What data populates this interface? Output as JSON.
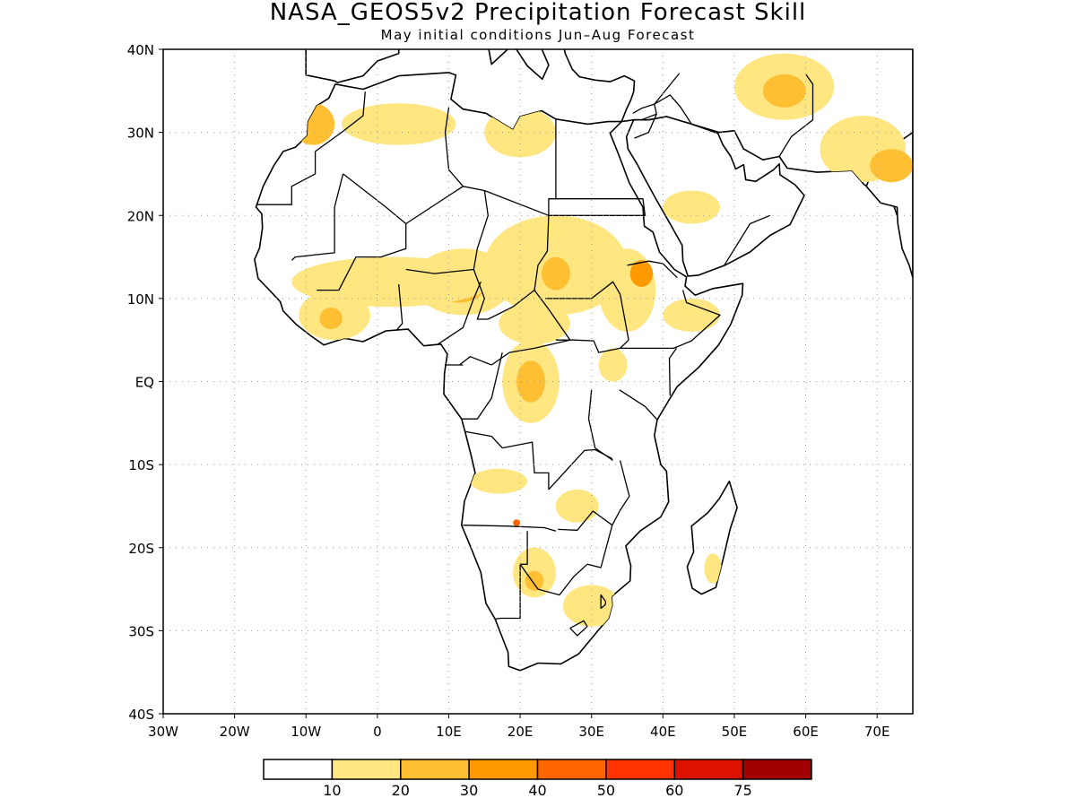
{
  "title": "NASA_GEOS5v2 Precipitation Forecast Skill",
  "subtitle": "May initial conditions  Jun–Aug Forecast",
  "map": {
    "lon_range": [
      -30,
      75
    ],
    "lat_range": [
      -40,
      40
    ],
    "lon_ticks": [
      {
        "value": -30,
        "label": "30W"
      },
      {
        "value": -20,
        "label": "20W"
      },
      {
        "value": -10,
        "label": "10W"
      },
      {
        "value": 0,
        "label": "0"
      },
      {
        "value": 10,
        "label": "10E"
      },
      {
        "value": 20,
        "label": "20E"
      },
      {
        "value": 30,
        "label": "30E"
      },
      {
        "value": 40,
        "label": "40E"
      },
      {
        "value": 50,
        "label": "50E"
      },
      {
        "value": 60,
        "label": "60E"
      },
      {
        "value": 70,
        "label": "70E"
      }
    ],
    "lat_ticks": [
      {
        "value": 40,
        "label": "40N"
      },
      {
        "value": 30,
        "label": "30N"
      },
      {
        "value": 20,
        "label": "20N"
      },
      {
        "value": 10,
        "label": "10N"
      },
      {
        "value": 0,
        "label": "EQ"
      },
      {
        "value": -10,
        "label": "10S"
      },
      {
        "value": -20,
        "label": "20S"
      },
      {
        "value": -30,
        "label": "30S"
      },
      {
        "value": -40,
        "label": "40S"
      }
    ]
  },
  "colorbar": {
    "colors": [
      "#ffffff",
      "#ffe680",
      "#ffbf33",
      "#ff9900",
      "#ff6600",
      "#ff3300",
      "#dd1100",
      "#a00000"
    ],
    "labels": [
      "10",
      "20",
      "30",
      "40",
      "50",
      "60",
      "75"
    ]
  },
  "skill_regions": [
    {
      "lon": 12,
      "lat": 12,
      "rx": 7,
      "ry": 4,
      "level": 1
    },
    {
      "lon": 11.5,
      "lat": 11.5,
      "rx": 3.5,
      "ry": 2,
      "level": 2
    },
    {
      "lon": 11,
      "lat": 11.2,
      "rx": 1.3,
      "ry": 1,
      "level": 3
    },
    {
      "lon": 2,
      "lat": 12,
      "rx": 14,
      "ry": 3,
      "level": 1
    },
    {
      "lon": -6,
      "lat": 8,
      "rx": 5,
      "ry": 3,
      "level": 1
    },
    {
      "lon": -6.5,
      "lat": 7.6,
      "rx": 1.6,
      "ry": 1.3,
      "level": 2
    },
    {
      "lon": 25,
      "lat": 14,
      "rx": 10,
      "ry": 6,
      "level": 1
    },
    {
      "lon": 25,
      "lat": 13,
      "rx": 2,
      "ry": 2,
      "level": 2
    },
    {
      "lon": 35,
      "lat": 11,
      "rx": 4,
      "ry": 5,
      "level": 1
    },
    {
      "lon": 37,
      "lat": 13,
      "rx": 1.6,
      "ry": 1.6,
      "level": 3
    },
    {
      "lon": 21.5,
      "lat": 0,
      "rx": 4,
      "ry": 5,
      "level": 1
    },
    {
      "lon": 21.5,
      "lat": 0,
      "rx": 2,
      "ry": 2.5,
      "level": 2
    },
    {
      "lon": 22,
      "lat": 7,
      "rx": 5,
      "ry": 2.5,
      "level": 1
    },
    {
      "lon": 20,
      "lat": 30,
      "rx": 5,
      "ry": 3,
      "level": 1
    },
    {
      "lon": 3,
      "lat": 31,
      "rx": 8,
      "ry": 2.5,
      "level": 1
    },
    {
      "lon": -9,
      "lat": 31,
      "rx": 3,
      "ry": 2.5,
      "level": 2
    },
    {
      "lon": 57,
      "lat": 35.5,
      "rx": 7,
      "ry": 4,
      "level": 1
    },
    {
      "lon": 57,
      "lat": 35,
      "rx": 3,
      "ry": 2,
      "level": 2
    },
    {
      "lon": 68,
      "lat": 28,
      "rx": 6,
      "ry": 4,
      "level": 1
    },
    {
      "lon": 72,
      "lat": 26,
      "rx": 3,
      "ry": 2,
      "level": 2
    },
    {
      "lon": 44,
      "lat": 21,
      "rx": 4,
      "ry": 2,
      "level": 1
    },
    {
      "lon": 22,
      "lat": -23,
      "rx": 3,
      "ry": 3,
      "level": 1
    },
    {
      "lon": 22,
      "lat": -24,
      "rx": 1.3,
      "ry": 1.2,
      "level": 2
    },
    {
      "lon": 30,
      "lat": -27,
      "rx": 4,
      "ry": 2.5,
      "level": 1
    },
    {
      "lon": 28,
      "lat": -15,
      "rx": 3,
      "ry": 2,
      "level": 1
    },
    {
      "lon": 17,
      "lat": -12,
      "rx": 4,
      "ry": 1.5,
      "level": 1
    },
    {
      "lon": 47,
      "lat": -22.5,
      "rx": 1.2,
      "ry": 1.8,
      "level": 1
    },
    {
      "lon": 44,
      "lat": 8,
      "rx": 4,
      "ry": 2,
      "level": 1
    },
    {
      "lon": 33,
      "lat": 2,
      "rx": 2,
      "ry": 2,
      "level": 1
    },
    {
      "lon": 19.5,
      "lat": -17,
      "rx": 0.5,
      "ry": 0.4,
      "level": 4
    }
  ]
}
